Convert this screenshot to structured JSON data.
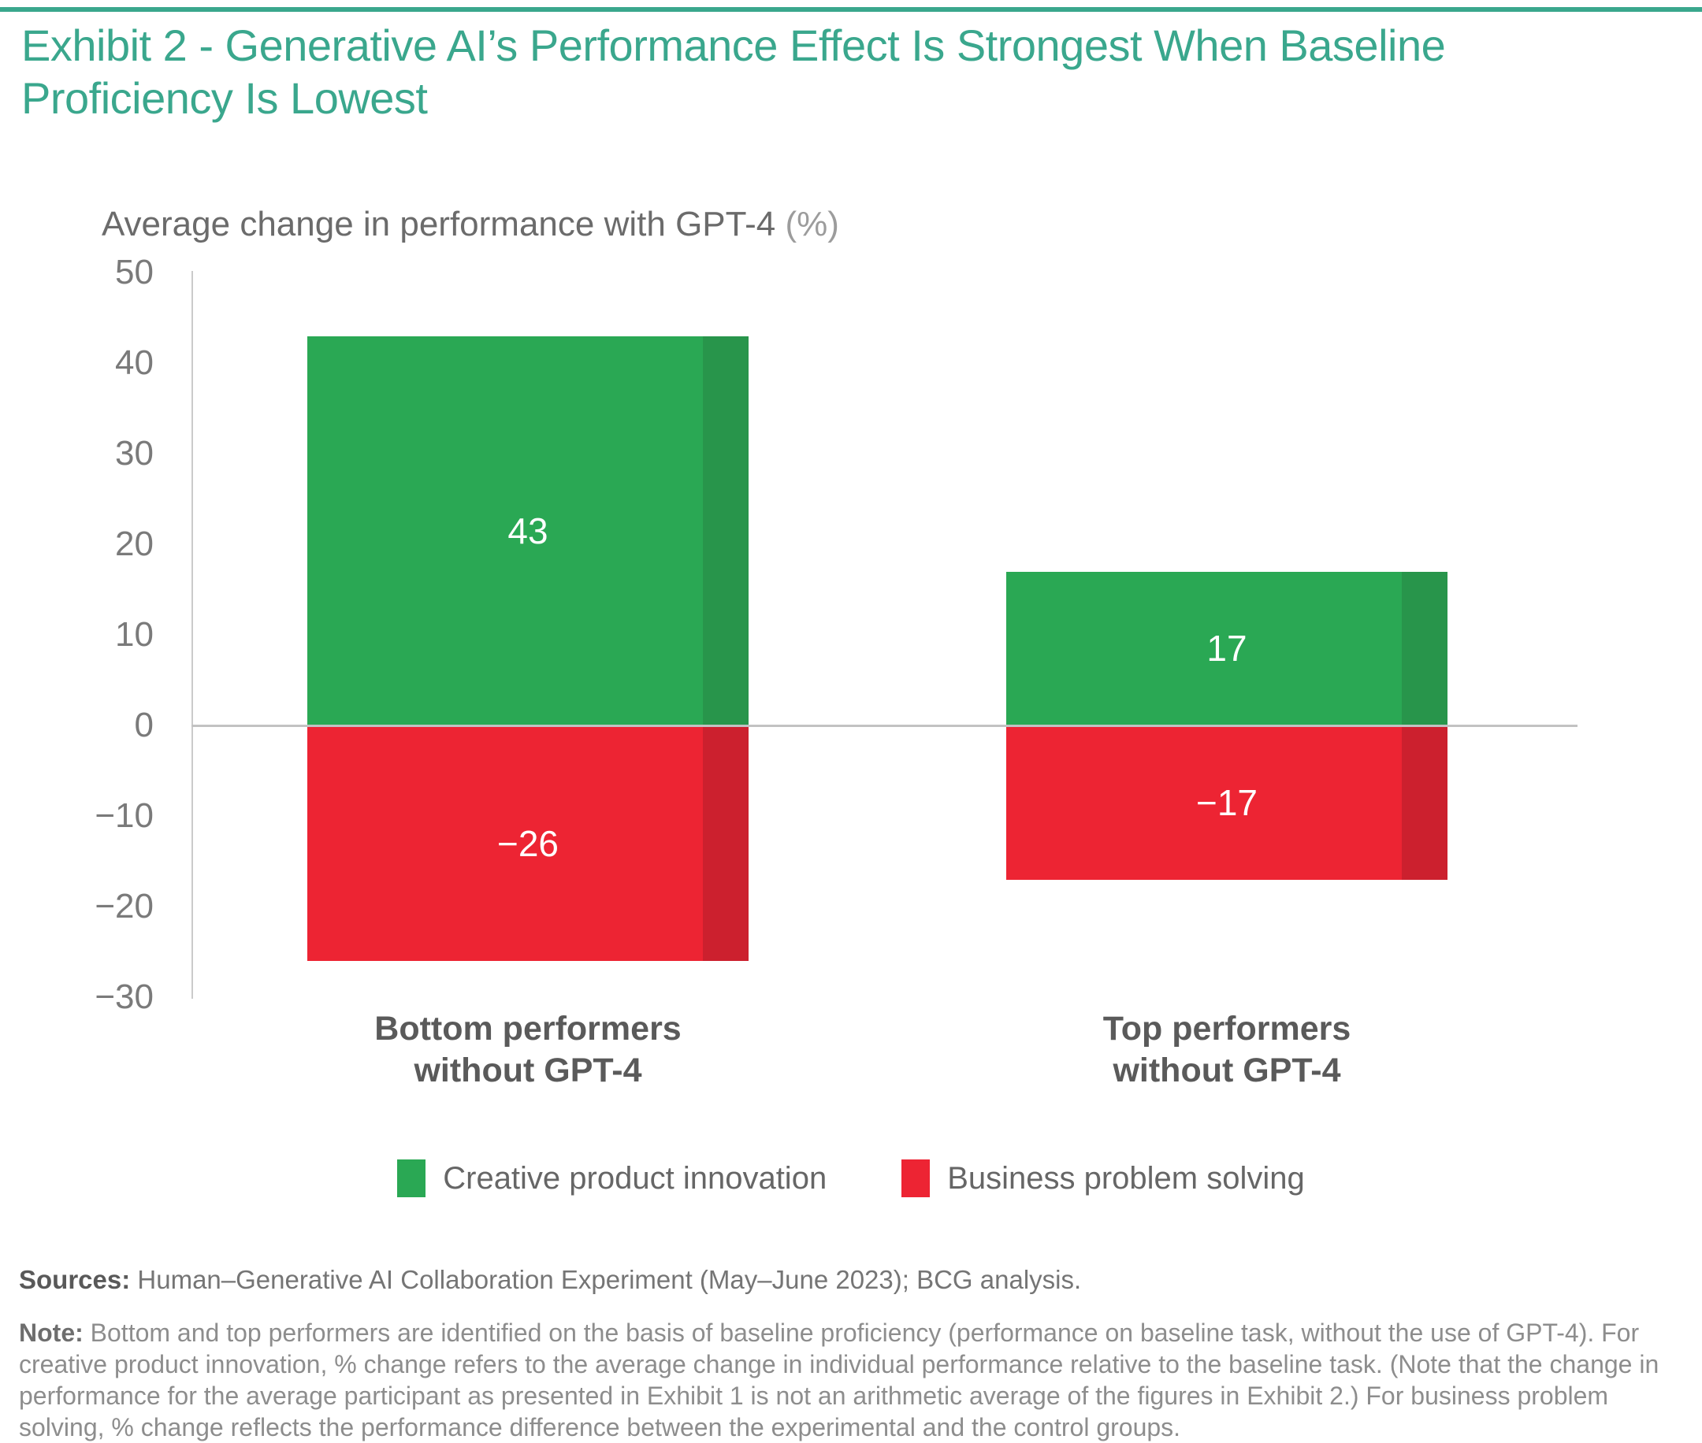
{
  "accent": {
    "teal": "#3AA78D",
    "green": "#2AA854",
    "green_dark": "#28954B",
    "red": "#ED2433",
    "red_dark": "#CC202E"
  },
  "header": {
    "title_lines": [
      "Exhibit 2 - Generative AI’s Performance Effect Is Strongest When Baseline",
      "Proficiency Is Lowest"
    ],
    "subtitle_main": "Average change in performance with GPT-4",
    "subtitle_unit": "(%)"
  },
  "chart_data": {
    "type": "bar",
    "stacked": true,
    "title": "Exhibit 2 - Generative AI’s Performance Effect Is Strongest When Baseline Proficiency Is Lowest",
    "ylabel": "Average change in performance with GPT-4 (%)",
    "xlabel": "",
    "categories": [
      "Bottom performers\nwithout GPT-4",
      "Top performers\nwithout GPT-4"
    ],
    "series": [
      {
        "name": "Creative product innovation",
        "color": "#2AA854",
        "edge_color": "#28954B",
        "values": [
          43,
          17
        ],
        "display_values": [
          "43",
          "17"
        ]
      },
      {
        "name": "Business problem solving",
        "color": "#ED2433",
        "edge_color": "#CC202E",
        "values": [
          -26,
          -17
        ],
        "display_values": [
          "−26",
          "−17"
        ]
      }
    ],
    "ylim": [
      -30,
      50
    ],
    "yticks": [
      50,
      40,
      30,
      20,
      10,
      0,
      -10,
      -20,
      -30
    ],
    "ytick_labels": [
      "50",
      "40",
      "30",
      "20",
      "10",
      "0",
      "−10",
      "−20",
      "−30"
    ],
    "grid": false,
    "zero_line": true,
    "legend_position": "bottom"
  },
  "footer": {
    "sources_label": "Sources:",
    "sources_text": "Human–Generative AI Collaboration Experiment (May–June 2023); BCG analysis.",
    "note_label": "Note:",
    "note_text": "Bottom and top performers are identified on the basis of baseline proficiency (performance on baseline task, without the use of GPT-4). For creative product innovation, % change refers to the average change in individual performance relative to the baseline task. (Note that the change in performance for the average participant as presented in Exhibit 1 is not an arithmetic average of the figures in Exhibit 2.) For business problem solving, % change reflects the performance difference between the experimental and the control groups."
  }
}
